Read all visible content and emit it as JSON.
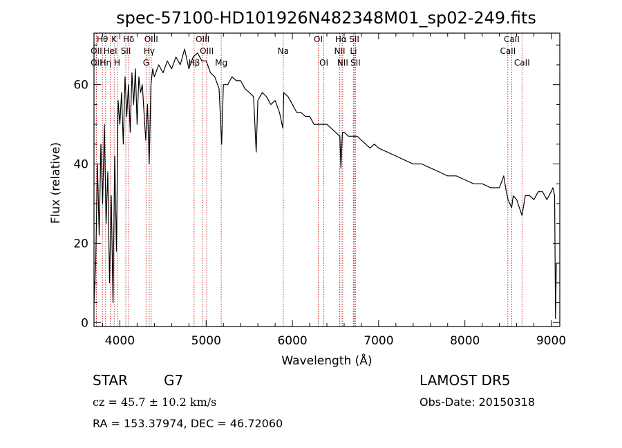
{
  "chart_data": {
    "type": "line",
    "title": "spec-57100-HD101926N482348M01_sp02-249.fits",
    "xlabel": "Wavelength (Å)",
    "ylabel": "Flux (relative)",
    "xlim": [
      3700,
      9100
    ],
    "ylim": [
      -1,
      73
    ],
    "x_ticks": [
      4000,
      5000,
      6000,
      7000,
      8000,
      9000
    ],
    "y_ticks": [
      0,
      20,
      40,
      60
    ],
    "grid": false,
    "series": [
      {
        "x": [
          3700,
          3720,
          3740,
          3760,
          3780,
          3800,
          3820,
          3840,
          3860,
          3880,
          3900,
          3920,
          3940,
          3960,
          3980,
          4000,
          4020,
          4040,
          4060,
          4080,
          4100,
          4120,
          4140,
          4160,
          4180,
          4200,
          4220,
          4240,
          4260,
          4280,
          4300,
          4320,
          4340,
          4360,
          4380,
          4400,
          4450,
          4500,
          4550,
          4600,
          4650,
          4700,
          4750,
          4800,
          4850,
          4900,
          4950,
          5000,
          5050,
          5100,
          5150,
          5180,
          5200,
          5250,
          5300,
          5350,
          5400,
          5450,
          5500,
          5550,
          5580,
          5600,
          5650,
          5700,
          5750,
          5800,
          5850,
          5890,
          5900,
          5950,
          6000,
          6050,
          6100,
          6150,
          6200,
          6250,
          6300,
          6350,
          6400,
          6450,
          6500,
          6550,
          6563,
          6580,
          6600,
          6650,
          6700,
          6750,
          6800,
          6850,
          6900,
          6950,
          7000,
          7100,
          7200,
          7300,
          7400,
          7500,
          7600,
          7700,
          7800,
          7900,
          8000,
          8100,
          8200,
          8300,
          8400,
          8450,
          8480,
          8500,
          8542,
          8560,
          8600,
          8662,
          8700,
          8750,
          8800,
          8850,
          8900,
          8950,
          9000,
          9020,
          9040,
          9050,
          9060
        ],
        "y": [
          5,
          15,
          40,
          22,
          45,
          30,
          50,
          25,
          38,
          10,
          32,
          5,
          42,
          18,
          56,
          50,
          58,
          45,
          62,
          52,
          60,
          48,
          63,
          55,
          64,
          50,
          62,
          58,
          60,
          53,
          46,
          55,
          40,
          60,
          64,
          62,
          65,
          63,
          66,
          64,
          67,
          65,
          69,
          64,
          67,
          68,
          66,
          66,
          63,
          62,
          59,
          45,
          60,
          60,
          62,
          61,
          61,
          59,
          58,
          57,
          43,
          56,
          58,
          57,
          55,
          56,
          53,
          49,
          58,
          57,
          55,
          53,
          53,
          52,
          52,
          50,
          50,
          50,
          50,
          49,
          48,
          47,
          39,
          48,
          48,
          47,
          47,
          47,
          46,
          45,
          44,
          45,
          44,
          43,
          42,
          41,
          40,
          40,
          39,
          38,
          37,
          37,
          36,
          35,
          35,
          34,
          34,
          37,
          33,
          31,
          29,
          32,
          31,
          27,
          32,
          32,
          31,
          33,
          33,
          31,
          33,
          34,
          32,
          1,
          15
        ]
      }
    ],
    "line_markers": [
      {
        "label": "Hθ",
        "x": 3798,
        "row": 1
      },
      {
        "label": "OII",
        "x": 3727,
        "row": 2
      },
      {
        "label": "OII",
        "x": 3727,
        "row": 3
      },
      {
        "label": "K",
        "x": 3934,
        "row": 1
      },
      {
        "label": "HeI",
        "x": 3889,
        "row": 2
      },
      {
        "label": "Hη",
        "x": 3835,
        "row": 3
      },
      {
        "label": "H",
        "x": 3969,
        "row": 3
      },
      {
        "label": "Hδ",
        "x": 4102,
        "row": 1
      },
      {
        "label": "SII",
        "x": 4069,
        "row": 2
      },
      {
        "label": "OIII",
        "x": 4363,
        "row": 1
      },
      {
        "label": "Hγ",
        "x": 4340,
        "row": 2
      },
      {
        "label": "G",
        "x": 4304,
        "row": 3
      },
      {
        "label": "OIII",
        "x": 4959,
        "row": 1
      },
      {
        "label": "OIII",
        "x": 5007,
        "row": 2
      },
      {
        "label": "Hβ",
        "x": 4861,
        "row": 3
      },
      {
        "label": "Mg",
        "x": 5175,
        "row": 3
      },
      {
        "label": "Na",
        "x": 5894,
        "row": 2
      },
      {
        "label": "OI",
        "x": 6300,
        "row": 1
      },
      {
        "label": "OI",
        "x": 6364,
        "row": 3
      },
      {
        "label": "Hα",
        "x": 6563,
        "row": 1
      },
      {
        "label": "SII",
        "x": 6717,
        "row": 1
      },
      {
        "label": "NII",
        "x": 6548,
        "row": 2
      },
      {
        "label": "Li",
        "x": 6708,
        "row": 2
      },
      {
        "label": "NII",
        "x": 6583,
        "row": 3
      },
      {
        "label": "SII",
        "x": 6731,
        "row": 3
      },
      {
        "label": "CaII",
        "x": 8542,
        "row": 1
      },
      {
        "label": "CaII",
        "x": 8498,
        "row": 2
      },
      {
        "label": "CaII",
        "x": 8662,
        "row": 3
      }
    ]
  },
  "info": {
    "object_class": "STAR",
    "subclass": "G7",
    "survey": "LAMOST DR5",
    "cz": "cz = 45.7 ± 10.2 km/s",
    "obs_date": "Obs-Date: 20150318",
    "coords": "RA = 153.37974, DEC =  46.72060"
  },
  "colors": {
    "spectrum": "#000000",
    "marker_lines": "#c01818",
    "axes": "#000000",
    "background": "#ffffff"
  }
}
